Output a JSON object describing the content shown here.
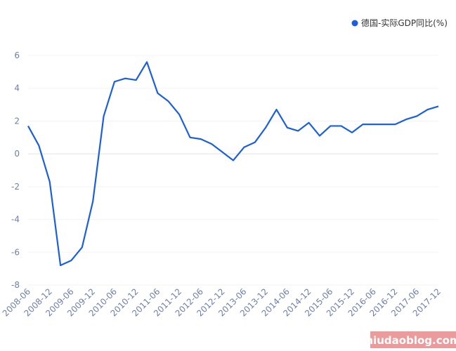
{
  "chart_data": {
    "type": "line",
    "categories": [
      "2008-06",
      null,
      "2008-12",
      null,
      "2009-06",
      null,
      "2009-12",
      null,
      "2010-06",
      null,
      "2010-12",
      null,
      "2011-06",
      null,
      "2011-12",
      null,
      "2012-06",
      null,
      "2012-12",
      null,
      "2013-06",
      null,
      "2013-12",
      null,
      "2014-06",
      null,
      "2014-12",
      null,
      "2015-06",
      null,
      "2015-12",
      null,
      "2016-06",
      null,
      "2016-12",
      null,
      "2017-06",
      null,
      "2017-12"
    ],
    "series": [
      {
        "name": "德国-实际GDP同比(%)",
        "color": "#1a5fe0",
        "values": [
          1.7,
          0.5,
          -1.7,
          -6.8,
          -6.5,
          -5.7,
          -2.9,
          2.3,
          4.4,
          4.6,
          4.5,
          5.6,
          3.7,
          3.2,
          2.4,
          1.0,
          0.9,
          0.6,
          0.1,
          -0.4,
          0.4,
          0.7,
          1.6,
          2.7,
          1.6,
          1.4,
          1.9,
          1.1,
          1.7,
          1.7,
          1.3,
          1.8,
          1.8,
          1.8,
          1.8,
          2.1,
          2.3,
          2.7,
          2.9
        ]
      }
    ],
    "ylim": [
      -8,
      6
    ],
    "yticks": [
      -8,
      -6,
      -4,
      -2,
      0,
      2,
      4,
      6
    ],
    "grid": true,
    "legend": "top-right",
    "watermark": "niudaoblog.com"
  }
}
